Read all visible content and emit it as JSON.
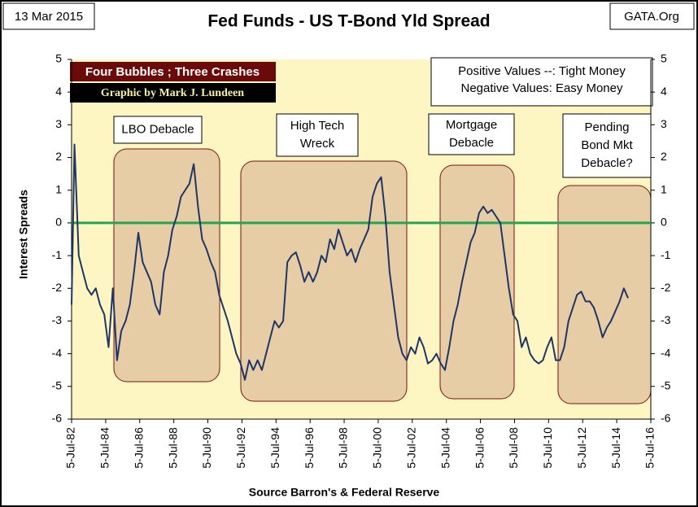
{
  "chart_data": {
    "type": "line",
    "title": "Fed Funds - US T-Bond Yld Spread",
    "date_label": "13 Mar 2015",
    "source_site": "GATA.Org",
    "banner": "Four Bubbles ; Three Crashes",
    "credit": "Graphic by Mark J. Lundeen",
    "note": [
      "Positive Values --: Tight Money",
      "Negative Values: Easy Money"
    ],
    "annotations": [
      [
        "LBO Debacle"
      ],
      [
        "High Tech",
        "Wreck"
      ],
      [
        "Mortgage",
        "Debacle"
      ],
      [
        "Pending",
        "Bond Mkt",
        "Debacle?"
      ]
    ],
    "y_label": "Interest Spreads",
    "x_label": "Source Barron's & Federal Reserve",
    "reference_line": {
      "value": 0,
      "color": "#22a650"
    },
    "xlim": [
      "1982-07-05",
      "2016-07-05"
    ],
    "xticks": [
      {
        "value": "1982-07-05",
        "label": "5-Jul-82"
      },
      {
        "value": "1984-07-05",
        "label": "5-Jul-84"
      },
      {
        "value": "1986-07-05",
        "label": "5-Jul-86"
      },
      {
        "value": "1988-07-05",
        "label": "5-Jul-88"
      },
      {
        "value": "1990-07-05",
        "label": "5-Jul-90"
      },
      {
        "value": "1992-07-05",
        "label": "5-Jul-92"
      },
      {
        "value": "1994-07-05",
        "label": "5-Jul-94"
      },
      {
        "value": "1996-07-05",
        "label": "5-Jul-96"
      },
      {
        "value": "1998-07-05",
        "label": "5-Jul-98"
      },
      {
        "value": "2000-07-05",
        "label": "5-Jul-00"
      },
      {
        "value": "2002-07-05",
        "label": "5-Jul-02"
      },
      {
        "value": "2004-07-05",
        "label": "5-Jul-04"
      },
      {
        "value": "2006-07-05",
        "label": "5-Jul-06"
      },
      {
        "value": "2008-07-05",
        "label": "5-Jul-08"
      },
      {
        "value": "2010-07-05",
        "label": "5-Jul-10"
      },
      {
        "value": "2012-07-05",
        "label": "5-Jul-12"
      },
      {
        "value": "2014-07-05",
        "label": "5-Jul-14"
      },
      {
        "value": "2016-07-05",
        "label": "5-Jul-16"
      }
    ],
    "ylim": [
      -6,
      5
    ],
    "yticks": [
      -6,
      -5,
      -4,
      -3,
      -2,
      -1,
      0,
      1,
      2,
      3,
      4,
      5
    ],
    "x": [
      "1982-07-05",
      "1982-09-05",
      "1982-12-05",
      "1983-03-05",
      "1983-06-05",
      "1983-09-05",
      "1983-12-05",
      "1984-03-05",
      "1984-06-05",
      "1984-09-05",
      "1984-12-05",
      "1985-03-05",
      "1985-06-05",
      "1985-09-05",
      "1985-12-05",
      "1986-03-05",
      "1986-06-05",
      "1986-09-05",
      "1986-12-05",
      "1987-03-05",
      "1987-06-05",
      "1987-09-05",
      "1987-12-05",
      "1988-03-05",
      "1988-06-05",
      "1988-09-05",
      "1988-12-05",
      "1989-03-05",
      "1989-06-05",
      "1989-09-05",
      "1989-12-05",
      "1990-03-05",
      "1990-06-05",
      "1990-09-05",
      "1990-12-05",
      "1991-03-05",
      "1991-06-05",
      "1991-09-05",
      "1991-12-05",
      "1992-03-05",
      "1992-06-05",
      "1992-09-05",
      "1992-12-05",
      "1993-03-05",
      "1993-06-05",
      "1993-09-05",
      "1993-12-05",
      "1994-03-05",
      "1994-06-05",
      "1994-09-05",
      "1994-12-05",
      "1995-03-05",
      "1995-06-05",
      "1995-09-05",
      "1995-12-05",
      "1996-03-05",
      "1996-06-05",
      "1996-09-05",
      "1996-12-05",
      "1997-03-05",
      "1997-06-05",
      "1997-09-05",
      "1997-12-05",
      "1998-03-05",
      "1998-06-05",
      "1998-09-05",
      "1998-12-05",
      "1999-03-05",
      "1999-06-05",
      "1999-09-05",
      "1999-12-05",
      "2000-03-05",
      "2000-06-05",
      "2000-09-05",
      "2000-12-05",
      "2001-03-05",
      "2001-06-05",
      "2001-09-05",
      "2001-12-05",
      "2002-03-05",
      "2002-06-05",
      "2002-09-05",
      "2002-12-05",
      "2003-03-05",
      "2003-06-05",
      "2003-09-05",
      "2003-12-05",
      "2004-03-05",
      "2004-06-05",
      "2004-09-05",
      "2004-12-05",
      "2005-03-05",
      "2005-06-05",
      "2005-09-05",
      "2005-12-05",
      "2006-03-05",
      "2006-06-05",
      "2006-09-05",
      "2006-12-05",
      "2007-03-05",
      "2007-06-05",
      "2007-09-05",
      "2007-12-05",
      "2008-03-05",
      "2008-06-05",
      "2008-09-05",
      "2008-12-05",
      "2009-03-05",
      "2009-06-05",
      "2009-09-05",
      "2009-12-05",
      "2010-03-05",
      "2010-06-05",
      "2010-09-05",
      "2010-12-05",
      "2011-03-05",
      "2011-06-05",
      "2011-09-05",
      "2011-12-05",
      "2012-03-05",
      "2012-06-05",
      "2012-09-05",
      "2012-12-05",
      "2013-03-05",
      "2013-06-05",
      "2013-09-05",
      "2013-12-05",
      "2014-03-05",
      "2014-06-05",
      "2014-09-05",
      "2014-12-05",
      "2015-03-05"
    ],
    "series": [
      {
        "name": "Fed Funds - US T-Bond Yld Spread",
        "color": "#1f3566",
        "values": [
          -2.5,
          2.4,
          -1.0,
          -1.5,
          -2.0,
          -2.2,
          -2.0,
          -2.5,
          -2.8,
          -3.8,
          -2.0,
          -4.2,
          -3.3,
          -3.0,
          -2.5,
          -1.5,
          -0.3,
          -1.2,
          -1.5,
          -1.8,
          -2.5,
          -2.8,
          -1.5,
          -1.0,
          -0.2,
          0.2,
          0.8,
          1.0,
          1.2,
          1.8,
          0.5,
          -0.5,
          -0.8,
          -1.2,
          -1.5,
          -2.2,
          -2.6,
          -3.0,
          -3.5,
          -4.0,
          -4.3,
          -4.8,
          -4.2,
          -4.5,
          -4.2,
          -4.5,
          -4.0,
          -3.5,
          -3.0,
          -3.2,
          -3.0,
          -1.2,
          -1.0,
          -0.9,
          -1.3,
          -1.8,
          -1.5,
          -1.8,
          -1.5,
          -1.0,
          -1.2,
          -0.5,
          -0.8,
          -0.2,
          -0.6,
          -1.0,
          -0.8,
          -1.2,
          -0.8,
          -0.5,
          -0.2,
          0.8,
          1.2,
          1.4,
          0.2,
          -1.5,
          -2.5,
          -3.5,
          -4.0,
          -4.2,
          -3.8,
          -4.0,
          -3.5,
          -3.8,
          -4.3,
          -4.2,
          -4.0,
          -4.3,
          -4.5,
          -3.8,
          -3.0,
          -2.5,
          -1.8,
          -1.2,
          -0.6,
          -0.3,
          0.3,
          0.5,
          0.3,
          0.4,
          0.2,
          0.0,
          -1.0,
          -2.0,
          -2.8,
          -3.0,
          -3.8,
          -3.5,
          -4.0,
          -4.2,
          -4.3,
          -4.2,
          -3.8,
          -3.5,
          -4.2,
          -4.2,
          -3.8,
          -3.0,
          -2.6,
          -2.2,
          -2.1,
          -2.4,
          -2.4,
          -2.6,
          -3.0,
          -3.5,
          -3.2,
          -3.0,
          -2.7,
          -2.4,
          -2.0,
          -2.3
        ]
      }
    ]
  }
}
